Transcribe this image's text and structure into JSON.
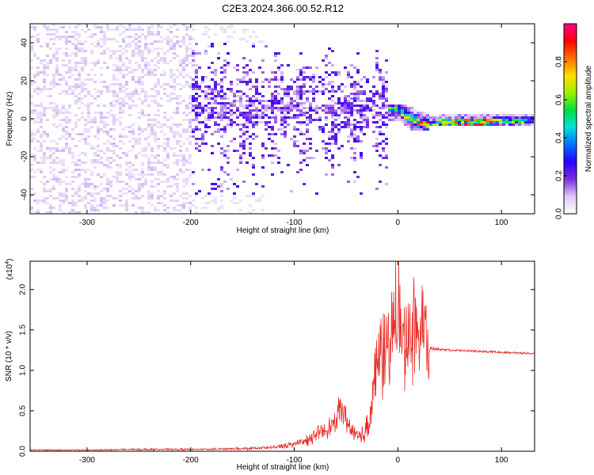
{
  "title": "C2E3.2024.366.00.52.R12",
  "chart_data": [
    {
      "type": "heatmap",
      "xlabel": "Height of straight line (km)",
      "ylabel": "Frequency (Hz)",
      "xlim": [
        -355,
        132
      ],
      "ylim": [
        -50,
        50
      ],
      "x_ticks": [
        -300,
        -200,
        -100,
        0,
        100
      ],
      "y_ticks": [
        -40,
        -20,
        0,
        20,
        40
      ],
      "grid": false,
      "colorbar": {
        "label": "Normalized spectral amplitude",
        "range": [
          0.0,
          1.0
        ],
        "ticks": [
          0.0,
          0.2,
          0.4,
          0.6,
          0.8
        ],
        "colormap": [
          "#ffffff",
          "#ddc8f5",
          "#7a2fe0",
          "#2a00ff",
          "#0070ff",
          "#00e0e0",
          "#00e040",
          "#a0f000",
          "#ffe000",
          "#ff7000",
          "#ff0000",
          "#ff0088"
        ]
      },
      "regions": [
        {
          "x": [
            -355,
            -200
          ],
          "y": [
            -50,
            50
          ],
          "level": 0.08
        },
        {
          "x": [
            -200,
            -130
          ],
          "y": [
            -50,
            50
          ],
          "level": 0.04
        },
        {
          "x": [
            -200,
            -10
          ],
          "y": [
            -40,
            40
          ],
          "level": 0.2
        },
        {
          "x": [
            -10,
            30
          ],
          "y": [
            -6,
            8
          ],
          "level": 0.45
        },
        {
          "x": [
            30,
            132
          ],
          "y": [
            -4,
            4
          ],
          "level": 0.5
        }
      ],
      "ridge": {
        "x": [
          0,
          10,
          20,
          30,
          40,
          60,
          80,
          100,
          132
        ],
        "y": [
          5,
          1,
          -2,
          -3,
          -2,
          -2,
          -2,
          -1,
          -1
        ],
        "level": [
          0.5,
          0.6,
          0.85,
          0.7,
          0.55,
          0.75,
          0.85,
          0.6,
          0.5
        ]
      }
    },
    {
      "type": "line",
      "xlabel": "Height of straight line (km)",
      "ylabel": "SNR (10 * v/v)",
      "y_multiplier": "(x10",
      "y_multiplier_exp": "4",
      "y_multiplier_close": ")",
      "xlim": [
        -355,
        132
      ],
      "ylim": [
        0,
        23500
      ],
      "x_ticks": [
        -300,
        -200,
        -100,
        0,
        100
      ],
      "y_ticks": [
        0.0,
        0.5,
        1.0,
        1.5,
        2.0
      ],
      "y_tick_scale": 10000,
      "color": "#e8302a",
      "series": [
        {
          "x": [
            -355,
            -300,
            -250,
            -200,
            -150,
            -120,
            -100,
            -90,
            -80,
            -70,
            -60,
            -55,
            -50,
            -45,
            -40,
            -35,
            -30,
            -25,
            -20,
            -15,
            -10,
            -5,
            0,
            5,
            10,
            15,
            20,
            25,
            30,
            35,
            40,
            50,
            60,
            70,
            80,
            90,
            100,
            110,
            120,
            132
          ],
          "y": [
            200,
            200,
            300,
            300,
            400,
            600,
            1200,
            1500,
            2500,
            3500,
            4500,
            7500,
            5000,
            3500,
            2500,
            2000,
            4000,
            8000,
            14000,
            16000,
            15000,
            20000,
            23500,
            16000,
            19000,
            20500,
            16500,
            21500,
            12500,
            12700,
            12600,
            12500,
            12450,
            12400,
            12350,
            12300,
            12250,
            12200,
            12150,
            12100
          ],
          "noise_amplitude": [
            100,
            100,
            150,
            150,
            200,
            300,
            500,
            700,
            900,
            1200,
            1400,
            1500,
            1500,
            1300,
            1500,
            2000,
            2500,
            4000,
            6000,
            6000,
            6000,
            7000,
            8000,
            7000,
            7000,
            7000,
            6000,
            5000,
            800,
            400,
            300,
            250,
            250,
            250,
            250,
            250,
            250,
            250,
            250,
            250
          ]
        }
      ]
    }
  ]
}
